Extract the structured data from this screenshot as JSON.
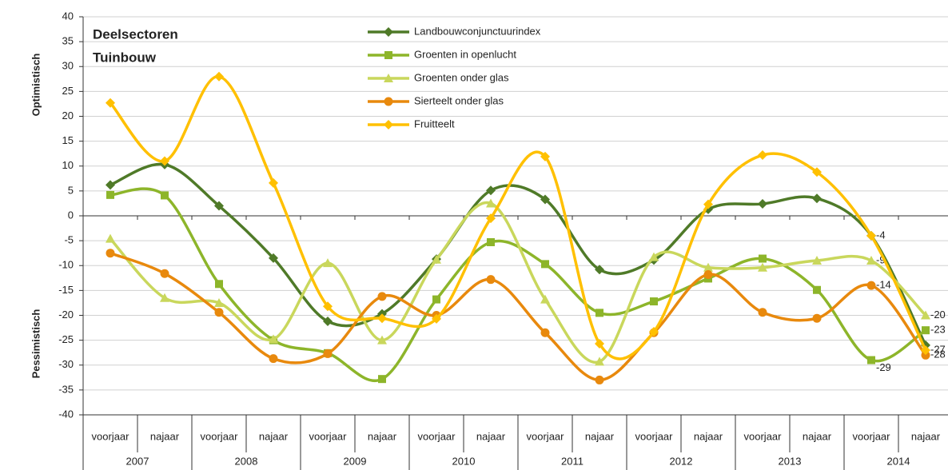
{
  "chart_data": {
    "type": "line",
    "title_lines": [
      "Deelsectoren",
      "Tuinbouw"
    ],
    "y_labels": [
      "Optimistisch",
      "Pessimistisch"
    ],
    "categories": [
      "voorjaar",
      "najaar",
      "voorjaar",
      "najaar",
      "voorjaar",
      "najaar",
      "voorjaar",
      "najaar",
      "voorjaar",
      "najaar",
      "voorjaar",
      "najaar",
      "voorjaar",
      "najaar",
      "voorjaar",
      "najaar"
    ],
    "groups": [
      "2007",
      "2008",
      "2009",
      "2010",
      "2011",
      "2012",
      "2013",
      "2014"
    ],
    "ylim": [
      -40,
      40
    ],
    "yticks": [
      -40,
      -35,
      -30,
      -25,
      -20,
      -15,
      -10,
      -5,
      0,
      5,
      10,
      15,
      20,
      25,
      30,
      35,
      40
    ],
    "grid": true,
    "smooth": true,
    "series": [
      {
        "name": "Landbouwconjunctuurindex",
        "color": "#4f7a28",
        "marker": "diamond",
        "values": [
          6.2,
          10.3,
          2,
          -8.5,
          -21.2,
          -19.7,
          -8.7,
          5.1,
          3.3,
          -10.8,
          -8.9,
          1.3,
          2.4,
          3.5,
          -4,
          -26
        ],
        "value_labels": [
          null,
          null,
          null,
          null,
          null,
          null,
          null,
          null,
          null,
          null,
          null,
          null,
          null,
          null,
          "-4",
          null
        ]
      },
      {
        "name": "Groenten in openlucht",
        "color": "#8db52a",
        "marker": "square",
        "values": [
          4.2,
          4.1,
          -13.7,
          -25,
          -27.6,
          -32.8,
          -16.8,
          -5.3,
          -9.7,
          -19.5,
          -17.2,
          -12.6,
          -8.6,
          -14.9,
          -29,
          -23
        ],
        "value_labels": [
          null,
          null,
          null,
          null,
          null,
          null,
          null,
          null,
          null,
          null,
          null,
          null,
          null,
          null,
          "-29",
          "-23"
        ]
      },
      {
        "name": "Groenten onder glas",
        "color": "#c9d75c",
        "marker": "triangle",
        "values": [
          -4.6,
          -16.5,
          -17.5,
          -24.8,
          -9.5,
          -25,
          -8.8,
          2.5,
          -16.8,
          -29.3,
          -8.3,
          -10.4,
          -10.4,
          -9,
          -9,
          -20
        ],
        "value_labels": [
          null,
          null,
          null,
          null,
          null,
          null,
          null,
          null,
          null,
          null,
          null,
          null,
          null,
          null,
          "-9",
          "-20"
        ]
      },
      {
        "name": "Sierteelt onder glas",
        "color": "#e8890d",
        "marker": "circle",
        "values": [
          -7.5,
          -11.6,
          -19.4,
          -28.7,
          -27.7,
          -16.2,
          -20,
          -12.8,
          -23.5,
          -33,
          -23.5,
          -11.8,
          -19.4,
          -20.6,
          -14,
          -28
        ],
        "value_labels": [
          null,
          null,
          null,
          null,
          null,
          null,
          null,
          null,
          null,
          null,
          null,
          null,
          null,
          null,
          "-14",
          "-28"
        ]
      },
      {
        "name": "Fruitteelt",
        "color": "#ffc000",
        "marker": "diamond",
        "values": [
          22.7,
          11,
          28,
          6.6,
          -18.2,
          -20.6,
          -20.7,
          -0.5,
          11.9,
          -25.7,
          -23.3,
          2.3,
          12.2,
          8.8,
          -4,
          -27
        ],
        "value_labels": [
          null,
          null,
          null,
          null,
          null,
          null,
          null,
          null,
          null,
          null,
          null,
          null,
          null,
          null,
          null,
          "-27"
        ]
      }
    ]
  }
}
